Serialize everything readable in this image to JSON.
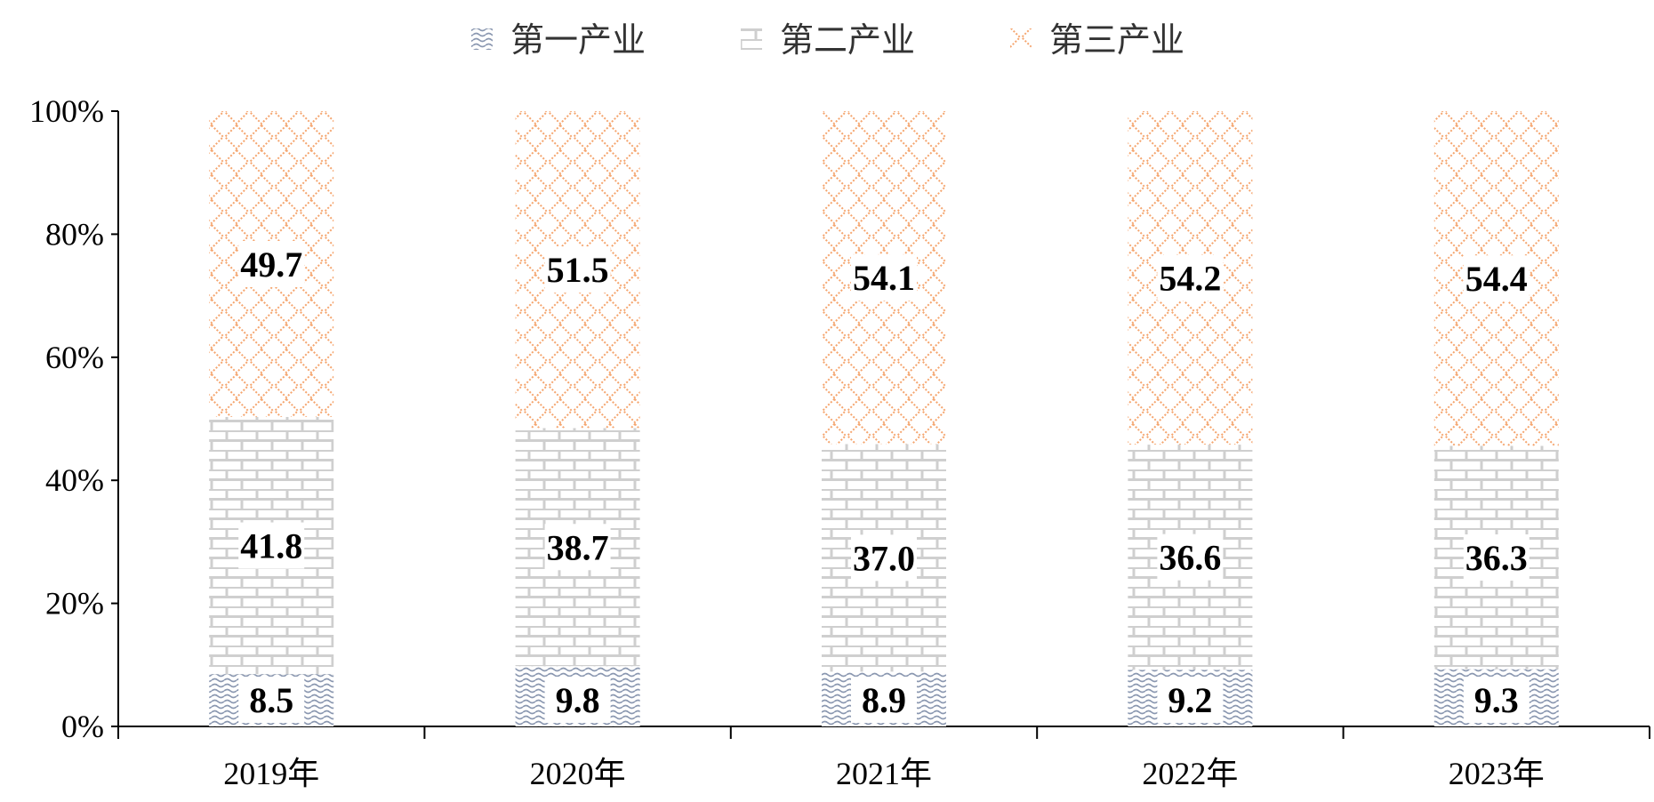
{
  "chart_data": {
    "type": "bar",
    "stacked": true,
    "percent_stacked": true,
    "categories": [
      "2019年",
      "2020年",
      "2021年",
      "2022年",
      "2023年"
    ],
    "series": [
      {
        "name": "第一产业",
        "values": [
          8.5,
          9.8,
          8.9,
          9.2,
          9.3
        ],
        "color": "#8a97b0",
        "pattern": "wave"
      },
      {
        "name": "第二产业",
        "values": [
          41.8,
          38.7,
          37.0,
          36.6,
          36.3
        ],
        "color": "#c8c8c8",
        "pattern": "brick"
      },
      {
        "name": "第三产业",
        "values": [
          49.7,
          51.5,
          54.1,
          54.2,
          54.4
        ],
        "color": "#f5a56e",
        "pattern": "diamond"
      }
    ],
    "y_ticks": [
      "0%",
      "20%",
      "40%",
      "60%",
      "80%",
      "100%"
    ],
    "ylim": [
      0,
      100
    ],
    "grid": false,
    "legend_position": "top-center",
    "data_labels": true
  }
}
